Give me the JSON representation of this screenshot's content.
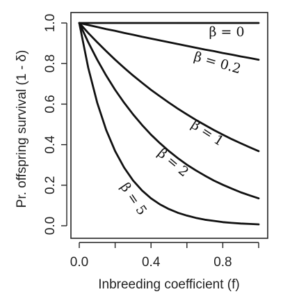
{
  "chart_data": {
    "type": "line",
    "title": "",
    "xlabel": "Inbreeding coefficient (f)",
    "ylabel": "Pr. offspring survival (1 - δ)",
    "xlim": [
      0,
      1
    ],
    "ylim": [
      0,
      1
    ],
    "x_ticks": [
      0.0,
      0.2,
      0.4,
      0.6,
      0.8,
      1.0
    ],
    "x_tick_labels": [
      "0.0",
      "",
      "0.4",
      "",
      "0.8",
      ""
    ],
    "y_ticks": [
      0.0,
      0.2,
      0.4,
      0.6,
      0.8,
      1.0
    ],
    "y_tick_labels": [
      "0.0",
      "0.2",
      "0.4",
      "0.6",
      "0.8",
      "1.0"
    ],
    "grid": false,
    "legend": "none",
    "line_color": "#111111",
    "x": [
      0,
      0.05,
      0.1,
      0.15,
      0.2,
      0.25,
      0.3,
      0.35,
      0.4,
      0.45,
      0.5,
      0.55,
      0.6,
      0.65,
      0.7,
      0.75,
      0.8,
      0.85,
      0.9,
      0.95,
      1.0
    ],
    "series": [
      {
        "label": "β = 0",
        "values": [
          1,
          1,
          1,
          1,
          1,
          1,
          1,
          1,
          1,
          1,
          1,
          1,
          1,
          1,
          1,
          1,
          1,
          1,
          1,
          1,
          1
        ]
      },
      {
        "label": "β = 0.2",
        "values": [
          1,
          0.99,
          0.98,
          0.97,
          0.961,
          0.951,
          0.942,
          0.932,
          0.923,
          0.914,
          0.905,
          0.896,
          0.887,
          0.878,
          0.869,
          0.861,
          0.852,
          0.844,
          0.835,
          0.827,
          0.819
        ]
      },
      {
        "label": "β = 1",
        "values": [
          1,
          0.951,
          0.905,
          0.861,
          0.819,
          0.779,
          0.741,
          0.705,
          0.67,
          0.638,
          0.607,
          0.577,
          0.549,
          0.522,
          0.497,
          0.472,
          0.449,
          0.427,
          0.407,
          0.387,
          0.368
        ]
      },
      {
        "label": "β = 2",
        "values": [
          1,
          0.905,
          0.819,
          0.741,
          0.67,
          0.607,
          0.549,
          0.497,
          0.449,
          0.407,
          0.368,
          0.333,
          0.301,
          0.273,
          0.247,
          0.223,
          0.202,
          0.183,
          0.165,
          0.15,
          0.135
        ]
      },
      {
        "label": "β = 5",
        "values": [
          1,
          0.779,
          0.607,
          0.472,
          0.368,
          0.287,
          0.223,
          0.174,
          0.135,
          0.105,
          0.082,
          0.064,
          0.05,
          0.039,
          0.03,
          0.024,
          0.018,
          0.014,
          0.011,
          0.009,
          0.007
        ]
      }
    ]
  }
}
